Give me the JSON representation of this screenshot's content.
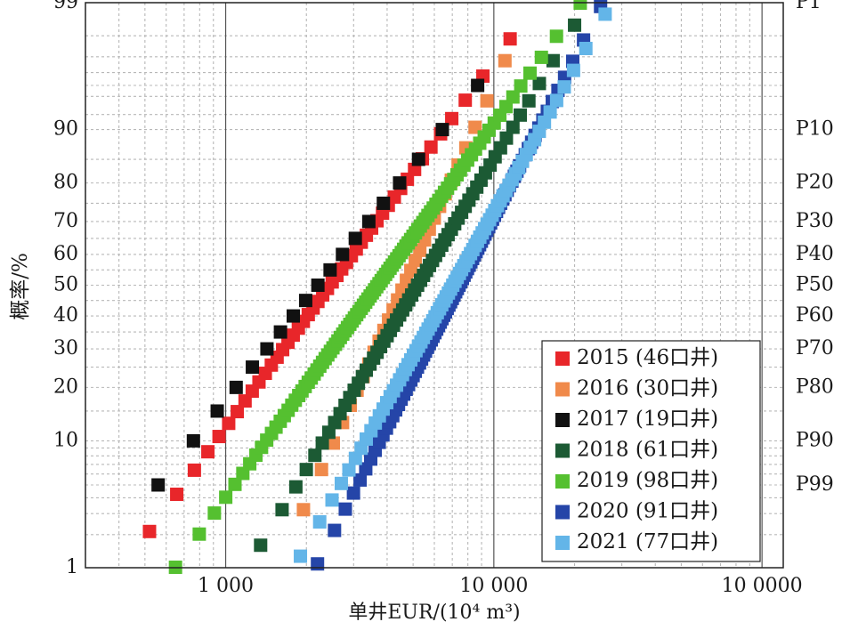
{
  "chart_data": {
    "type": "scatter",
    "xlabel": "单井EUR/(10⁴ m³)",
    "ylabel": "概率/%",
    "x_scale": "log",
    "y_scale": "probability",
    "xlim": [
      300,
      120000
    ],
    "ylim": [
      1,
      99
    ],
    "x_ticks": [
      {
        "value": 1000,
        "label": "1 000"
      },
      {
        "value": 10000,
        "label": "10 000"
      },
      {
        "value": 100000,
        "label": "10 0000"
      }
    ],
    "y_ticks": [
      {
        "value": 1,
        "label": "1"
      },
      {
        "value": 10,
        "label": "10"
      },
      {
        "value": 20,
        "label": "20"
      },
      {
        "value": 30,
        "label": "30"
      },
      {
        "value": 40,
        "label": "40"
      },
      {
        "value": 50,
        "label": "50"
      },
      {
        "value": 60,
        "label": "60"
      },
      {
        "value": 70,
        "label": "70"
      },
      {
        "value": 80,
        "label": "80"
      },
      {
        "value": 90,
        "label": "90"
      },
      {
        "value": 99,
        "label": "99"
      }
    ],
    "p_ticks": [
      {
        "value": 99,
        "label": "P1"
      },
      {
        "value": 90,
        "label": "P10"
      },
      {
        "value": 80,
        "label": "P20"
      },
      {
        "value": 70,
        "label": "P30"
      },
      {
        "value": 60,
        "label": "P40"
      },
      {
        "value": 50,
        "label": "P50"
      },
      {
        "value": 40,
        "label": "P60"
      },
      {
        "value": 30,
        "label": "P70"
      },
      {
        "value": 20,
        "label": "P80"
      },
      {
        "value": 10,
        "label": "P90"
      },
      {
        "value": 5,
        "label": "P99"
      }
    ],
    "grid": true,
    "legend_position": "bottom-right",
    "series": [
      {
        "name": "2015 (46口井)",
        "color": "#e8262a",
        "x_min": 520,
        "x_max": 11500,
        "count": 46
      },
      {
        "name": "2016 (30口井)",
        "color": "#f08a4b",
        "x_min": 1950,
        "x_max": 11000,
        "count": 30
      },
      {
        "name": "2017 (19口井)",
        "color": "#111111",
        "x_min": 560,
        "x_max": 8700,
        "count": 19
      },
      {
        "name": "2018 (61口井)",
        "color": "#1c5a34",
        "x_min": 1350,
        "x_max": 20000,
        "count": 61
      },
      {
        "name": "2019 (98口井)",
        "color": "#55c030",
        "x_min": 650,
        "x_max": 21000,
        "count": 98
      },
      {
        "name": "2020 (91口井)",
        "color": "#2545a8",
        "x_min": 2200,
        "x_max": 25000,
        "count": 91
      },
      {
        "name": "2021 (77口井)",
        "color": "#63b5e8",
        "x_min": 1900,
        "x_max": 26000,
        "count": 77
      }
    ]
  }
}
